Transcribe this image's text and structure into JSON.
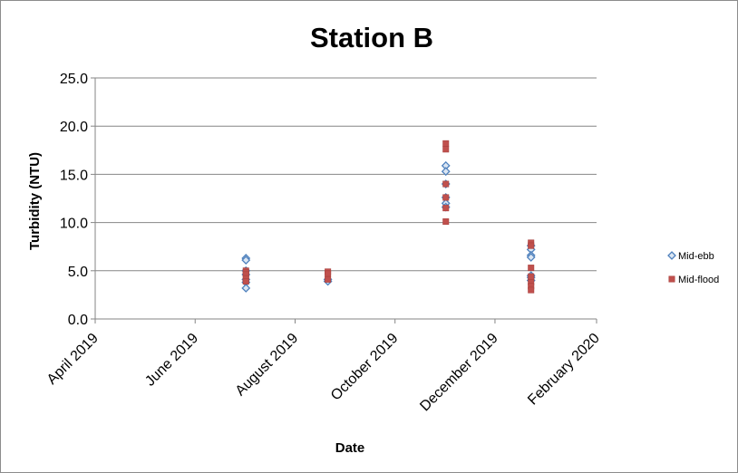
{
  "chart_data": {
    "type": "scatter",
    "title": "Station B",
    "xlabel": "Date",
    "ylabel": "Turbidity (NTU)",
    "x_ticks": [
      "2019-04-01",
      "2019-06-01",
      "2019-08-01",
      "2019-10-01",
      "2019-12-01",
      "2020-02-01"
    ],
    "x_tick_labels": [
      "April 2019",
      "June 2019",
      "August 2019",
      "October 2019",
      "December 2019",
      "February 2020"
    ],
    "xlim": [
      "2019-04-01",
      "2020-02-01"
    ],
    "ylim": [
      0,
      25
    ],
    "y_ticks": [
      0,
      5,
      10,
      15,
      20,
      25
    ],
    "y_tick_labels": [
      "0.0",
      "5.0",
      "10.0",
      "15.0",
      "20.0",
      "25.0"
    ],
    "grid": "horizontal",
    "legend": "right",
    "series": [
      {
        "name": "Mid-ebb",
        "marker": "diamond",
        "color": "#4f81bd",
        "points": [
          {
            "x": "2019-07-02",
            "y": 6.3
          },
          {
            "x": "2019-07-02",
            "y": 6.1
          },
          {
            "x": "2019-07-02",
            "y": 5.0
          },
          {
            "x": "2019-07-02",
            "y": 4.6
          },
          {
            "x": "2019-07-02",
            "y": 4.1
          },
          {
            "x": "2019-07-02",
            "y": 3.8
          },
          {
            "x": "2019-07-02",
            "y": 3.2
          },
          {
            "x": "2019-08-21",
            "y": 4.1
          },
          {
            "x": "2019-08-21",
            "y": 3.9
          },
          {
            "x": "2019-11-01",
            "y": 15.9
          },
          {
            "x": "2019-11-01",
            "y": 15.3
          },
          {
            "x": "2019-11-01",
            "y": 14.0
          },
          {
            "x": "2019-11-01",
            "y": 12.6
          },
          {
            "x": "2019-11-01",
            "y": 12.0
          },
          {
            "x": "2019-11-01",
            "y": 11.6
          },
          {
            "x": "2019-12-23",
            "y": 7.6
          },
          {
            "x": "2019-12-23",
            "y": 7.2
          },
          {
            "x": "2019-12-23",
            "y": 6.6
          },
          {
            "x": "2019-12-23",
            "y": 6.4
          },
          {
            "x": "2019-12-23",
            "y": 4.5
          },
          {
            "x": "2019-12-23",
            "y": 4.3
          },
          {
            "x": "2019-12-23",
            "y": 4.0
          }
        ]
      },
      {
        "name": "Mid-flood",
        "marker": "square",
        "color": "#c0504d",
        "points": [
          {
            "x": "2019-07-02",
            "y": 5.0
          },
          {
            "x": "2019-07-02",
            "y": 4.8
          },
          {
            "x": "2019-07-02",
            "y": 4.6
          },
          {
            "x": "2019-07-02",
            "y": 4.2
          },
          {
            "x": "2019-07-02",
            "y": 3.9
          },
          {
            "x": "2019-08-21",
            "y": 4.9
          },
          {
            "x": "2019-08-21",
            "y": 4.7
          },
          {
            "x": "2019-08-21",
            "y": 4.1
          },
          {
            "x": "2019-11-01",
            "y": 18.2
          },
          {
            "x": "2019-11-01",
            "y": 17.6
          },
          {
            "x": "2019-11-01",
            "y": 14.0
          },
          {
            "x": "2019-11-01",
            "y": 12.6
          },
          {
            "x": "2019-11-01",
            "y": 11.5
          },
          {
            "x": "2019-11-01",
            "y": 10.1
          },
          {
            "x": "2019-12-23",
            "y": 7.9
          },
          {
            "x": "2019-12-23",
            "y": 7.6
          },
          {
            "x": "2019-12-23",
            "y": 5.3
          },
          {
            "x": "2019-12-23",
            "y": 4.4
          },
          {
            "x": "2019-12-23",
            "y": 3.8
          },
          {
            "x": "2019-12-23",
            "y": 3.4
          },
          {
            "x": "2019-12-23",
            "y": 3.0
          }
        ]
      }
    ]
  }
}
